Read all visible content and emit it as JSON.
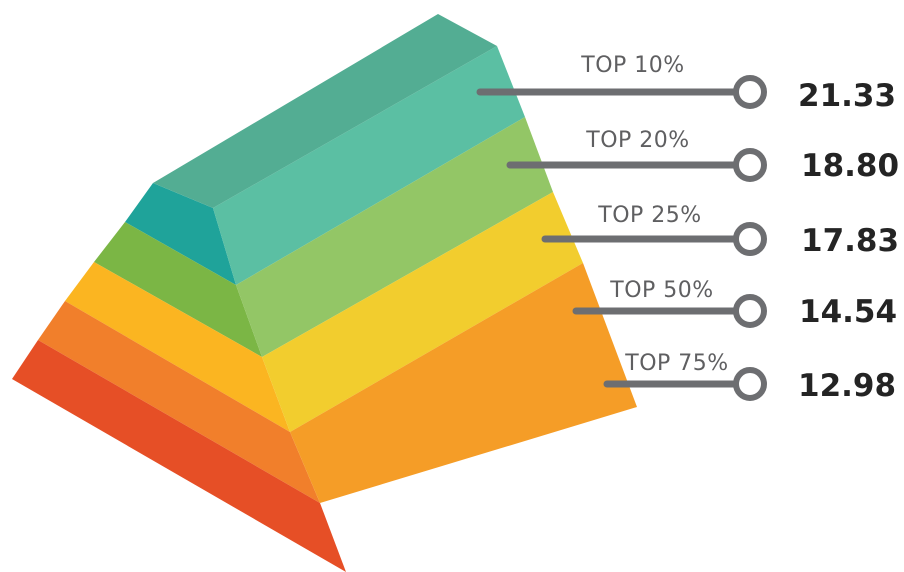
{
  "chart_data": {
    "type": "pyramid",
    "title": "",
    "categories": [
      "TOP 10%",
      "TOP 20%",
      "TOP 25%",
      "TOP 50%",
      "TOP 75%"
    ],
    "values": [
      21.33,
      18.8,
      17.83,
      14.54,
      12.98
    ],
    "value_labels": [
      "21.33",
      "18.80",
      "17.83",
      "14.54",
      "12.98"
    ],
    "colors": {
      "front": [
        "#5bbfa3",
        "#93c666",
        "#f2cd2e",
        "#f59d27",
        "#f26d4b"
      ],
      "side": [
        "#1fa39a",
        "#7bb645",
        "#fbb521",
        "#f17f2b",
        "#e64f26"
      ],
      "top": "#53ad93",
      "connector": "#6d6e71"
    }
  }
}
